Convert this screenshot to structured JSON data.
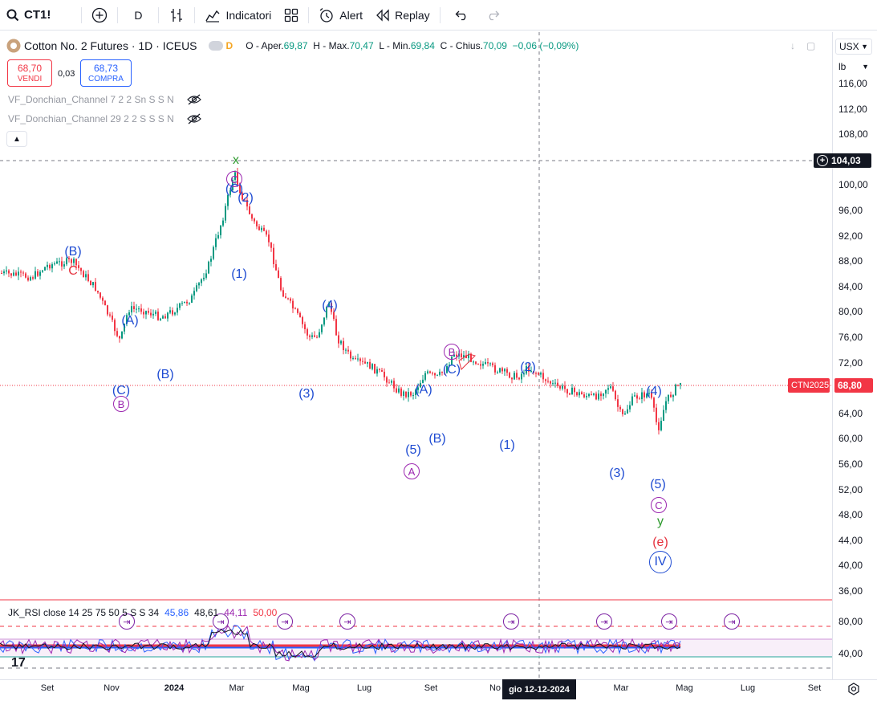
{
  "toolbar": {
    "symbol": "CT1!",
    "interval": "D",
    "indicators_label": "Indicatori",
    "alert_label": "Alert",
    "replay_label": "Replay"
  },
  "legend": {
    "title": "Cotton No. 2 Futures · 1D · ICEUS",
    "badge": "D",
    "open_label": "O - Aper.",
    "open": "69,87",
    "high_label": "H - Max.",
    "high": "70,47",
    "low_label": "L - Min.",
    "low": "69,84",
    "close_label": "C - Chius.",
    "close": "70,09",
    "change": "−0,06 (−0,09%)"
  },
  "trade": {
    "sell_price": "68,70",
    "sell_label": "VENDI",
    "spread": "0,03",
    "buy_price": "68,73",
    "buy_label": "COMPRA"
  },
  "indicators": [
    {
      "label": "VF_Donchian_Channel 7 2 2 Sn S S N"
    },
    {
      "label": "VF_Donchian_Channel 29 2 2 S S S N"
    }
  ],
  "price_axis": {
    "currency": "USX",
    "unit": "lb",
    "ticks": [
      "116,00",
      "112,00",
      "108,00",
      "104,00",
      "100,00",
      "96,00",
      "92,00",
      "88,00",
      "84,00",
      "80,00",
      "76,00",
      "72,00",
      "68,00",
      "64,00",
      "60,00",
      "56,00",
      "52,00",
      "48,00",
      "44,00",
      "40,00",
      "36,00"
    ],
    "crosshair_price": "104,03",
    "symbol_tag": "CTN2025",
    "last_price": "68,80"
  },
  "rsi": {
    "label": "JK_RSI close 14 25 75 50 5 S S 34",
    "v1": "45,86",
    "v2": "48,61",
    "v3": "44,11",
    "v4": "50,00",
    "ticks": [
      "80,00",
      "40,00"
    ]
  },
  "time_axis": {
    "ticks": [
      "Set",
      "Nov",
      "2024",
      "Mar",
      "Mag",
      "Lug",
      "Set",
      "No",
      "Mar",
      "Mag",
      "Lug",
      "Set"
    ],
    "crosshair_date": "gio 12-12-2024"
  },
  "wave_labels": [
    {
      "text": "(B)",
      "color": "blue"
    },
    {
      "text": "C",
      "color": "red"
    },
    {
      "text": "(A)",
      "color": "blue"
    },
    {
      "text": "(C)",
      "color": "blue"
    },
    {
      "text": "B",
      "color": "purple-circle"
    },
    {
      "text": "(B)",
      "color": "blue"
    },
    {
      "text": "x",
      "color": "green"
    },
    {
      "text": "C",
      "color": "purple-circle"
    },
    {
      "text": "(C)",
      "color": "blue"
    },
    {
      "text": "(2)",
      "color": "blue"
    },
    {
      "text": "(1)",
      "color": "blue"
    },
    {
      "text": "(4)",
      "color": "blue"
    },
    {
      "text": "(3)",
      "color": "blue"
    },
    {
      "text": "(A)",
      "color": "blue"
    },
    {
      "text": "(5)",
      "color": "blue"
    },
    {
      "text": "A",
      "color": "purple-circle"
    },
    {
      "text": "(B)",
      "color": "blue"
    },
    {
      "text": "B",
      "color": "purple-circle"
    },
    {
      "text": "(C)",
      "color": "blue"
    },
    {
      "text": "(2)",
      "color": "blue"
    },
    {
      "text": "(1)",
      "color": "blue"
    },
    {
      "text": "(4)",
      "color": "blue"
    },
    {
      "text": "(3)",
      "color": "blue"
    },
    {
      "text": "(5)",
      "color": "blue"
    },
    {
      "text": "C",
      "color": "purple-circle"
    },
    {
      "text": "y",
      "color": "green"
    },
    {
      "text": "(e)",
      "color": "red"
    },
    {
      "text": "IV",
      "color": "blue-circle"
    }
  ],
  "colors": {
    "up": "#089981",
    "down": "#f23645",
    "wave_blue": "#1e4bd2",
    "wave_purple": "#9c27b0"
  }
}
